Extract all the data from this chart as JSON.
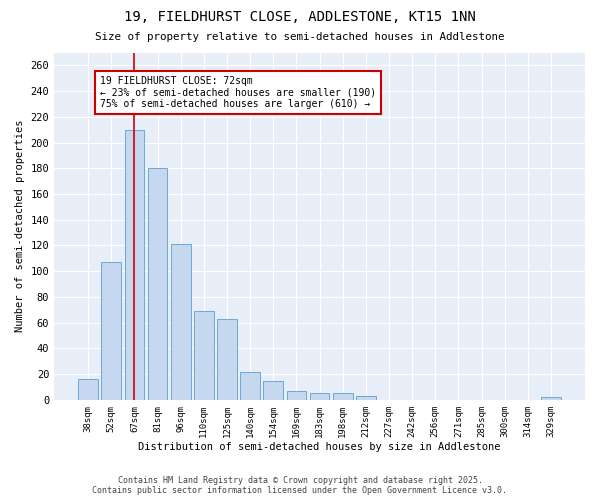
{
  "title": "19, FIELDHURST CLOSE, ADDLESTONE, KT15 1NN",
  "subtitle": "Size of property relative to semi-detached houses in Addlestone",
  "xlabel": "Distribution of semi-detached houses by size in Addlestone",
  "ylabel": "Number of semi-detached properties",
  "categories": [
    "38sqm",
    "52sqm",
    "67sqm",
    "81sqm",
    "96sqm",
    "110sqm",
    "125sqm",
    "140sqm",
    "154sqm",
    "169sqm",
    "183sqm",
    "198sqm",
    "212sqm",
    "227sqm",
    "242sqm",
    "256sqm",
    "271sqm",
    "285sqm",
    "300sqm",
    "314sqm",
    "329sqm"
  ],
  "values": [
    16,
    107,
    210,
    180,
    121,
    69,
    63,
    22,
    15,
    7,
    5,
    5,
    3,
    0,
    0,
    0,
    0,
    0,
    0,
    0,
    2
  ],
  "bar_color": "#c5d8f0",
  "bar_edge_color": "#6aaad4",
  "red_line_index": 2,
  "annotation_title": "19 FIELDHURST CLOSE: 72sqm",
  "annotation_line1": "← 23% of semi-detached houses are smaller (190)",
  "annotation_line2": "75% of semi-detached houses are larger (610) →",
  "annotation_box_color": "#ffffff",
  "annotation_box_edge": "#cc0000",
  "red_line_color": "#cc0000",
  "plot_bg_color": "#e8eef8",
  "fig_bg_color": "#ffffff",
  "grid_color": "#ffffff",
  "footer1": "Contains HM Land Registry data © Crown copyright and database right 2025.",
  "footer2": "Contains public sector information licensed under the Open Government Licence v3.0.",
  "ylim": [
    0,
    270
  ],
  "yticks": [
    0,
    20,
    40,
    60,
    80,
    100,
    120,
    140,
    160,
    180,
    200,
    220,
    240,
    260
  ]
}
